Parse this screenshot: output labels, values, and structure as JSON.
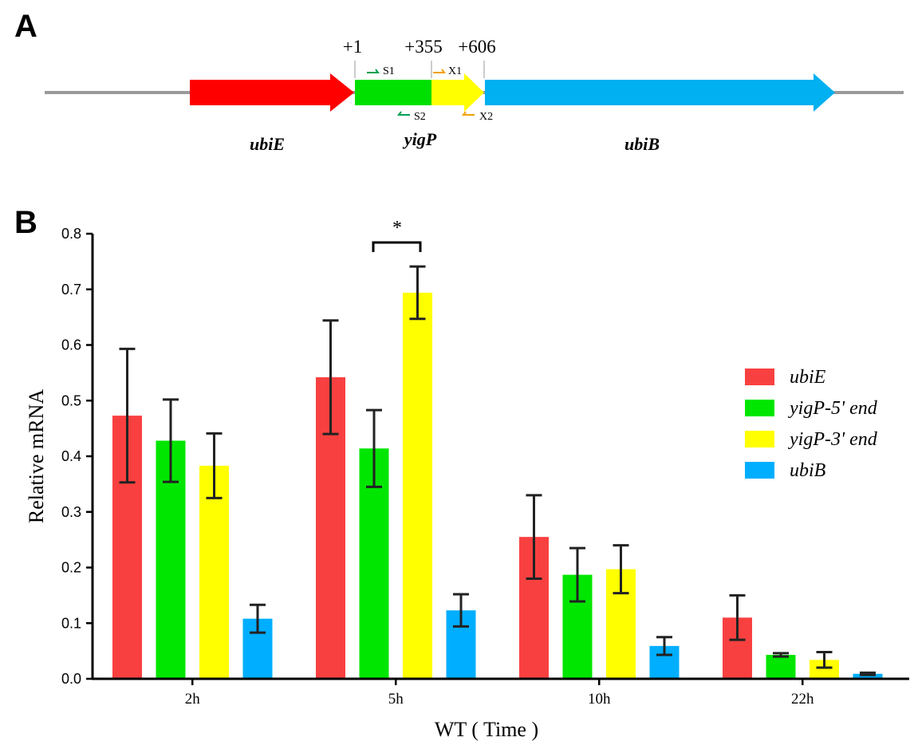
{
  "panel_a": {
    "label": "A",
    "positions": [
      "+1",
      "+355",
      "+606"
    ],
    "primers": [
      "S1",
      "X1",
      "S2",
      "X2"
    ],
    "genes": [
      {
        "name": "ubiE",
        "color": "#ff0000"
      },
      {
        "name": "yigP",
        "color_5p": "#00e000",
        "color_3p": "#ffff00"
      },
      {
        "name": "ubiB",
        "color": "#00b0f0"
      }
    ],
    "primer_colors": {
      "s": "#00a050",
      "x": "#f0a000"
    }
  },
  "panel_b": {
    "label": "B",
    "significance": "*"
  },
  "chart_data": {
    "type": "bar",
    "categories": [
      "2h",
      "5h",
      "10h",
      "22h"
    ],
    "series": [
      {
        "name": "ubiE",
        "color": "#f94040",
        "values": [
          0.473,
          0.542,
          0.255,
          0.11
        ],
        "errors": [
          0.12,
          0.102,
          0.075,
          0.04
        ]
      },
      {
        "name": "yigP-5' end",
        "legend_parts": [
          "yigP",
          "-5",
          "'",
          " end"
        ],
        "color": "#00e600",
        "values": [
          0.428,
          0.414,
          0.187,
          0.043
        ],
        "errors": [
          0.074,
          0.069,
          0.048,
          0.003
        ]
      },
      {
        "name": "yigP-3' end",
        "legend_parts": [
          "yigP",
          "-3",
          "'",
          " end"
        ],
        "color": "#ffff00",
        "values": [
          0.383,
          0.694,
          0.197,
          0.034
        ],
        "errors": [
          0.058,
          0.047,
          0.043,
          0.014
        ]
      },
      {
        "name": "ubiB",
        "color": "#00aeff",
        "values": [
          0.108,
          0.123,
          0.059,
          0.009
        ],
        "errors": [
          0.025,
          0.029,
          0.016,
          0.002
        ]
      }
    ],
    "xlabel": "WT ( Time )",
    "ylabel": "Relative mRNA",
    "ylim": [
      0,
      0.8
    ],
    "yticks": [
      "0.0",
      "0.1",
      "0.2",
      "0.3",
      "0.4",
      "0.5",
      "0.6",
      "0.7",
      "0.8"
    ],
    "legend_position": "right",
    "annotations": [
      {
        "text": "*",
        "between": [
          "yigP-5' end",
          "yigP-3' end"
        ],
        "category": "5h"
      }
    ]
  }
}
